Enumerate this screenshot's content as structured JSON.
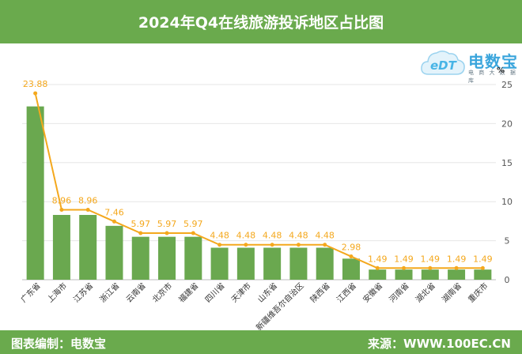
{
  "title": "2024年Q4在线旅游投诉地区占比图",
  "footer": {
    "left": "图表编制：电数宝",
    "right": "来源：WWW.100EC.CN"
  },
  "logo": {
    "mark": "eDT",
    "name": "电数宝",
    "tagline": "电 商 大 数 据 库",
    "icon": "cloud-logo-icon"
  },
  "colors": {
    "bar": "#6aa84f",
    "line": "#f4a81d",
    "header": "#6aaa4d",
    "label": "#f4a81d"
  },
  "chart_data": {
    "type": "bar",
    "unit": "%",
    "ylim": [
      0,
      25
    ],
    "yticks": [
      0,
      5,
      10,
      15,
      20,
      25
    ],
    "grid": true,
    "categories": [
      "广东省",
      "上海市",
      "江苏省",
      "浙江省",
      "云南省",
      "北京市",
      "福建省",
      "四川省",
      "天津市",
      "山东省",
      "新疆维吾尔自治区",
      "陕西省",
      "江西省",
      "安徽省",
      "河南省",
      "湖北省",
      "湖南省",
      "重庆市"
    ],
    "bar_values": [
      22.2,
      8.3,
      8.3,
      6.9,
      5.5,
      5.5,
      5.5,
      4.1,
      4.1,
      4.1,
      4.1,
      4.1,
      2.7,
      1.3,
      1.3,
      1.3,
      1.3,
      1.3
    ],
    "line_values": [
      23.88,
      8.96,
      8.96,
      7.46,
      5.97,
      5.97,
      5.97,
      4.48,
      4.48,
      4.48,
      4.48,
      4.48,
      2.98,
      1.49,
      1.49,
      1.49,
      1.49,
      1.49
    ],
    "labels": [
      "23.88",
      "8.96",
      "8.96",
      "7.46",
      "5.97",
      "5.97",
      "5.97",
      "4.48",
      "4.48",
      "4.48",
      "4.48",
      "4.48",
      "2.98",
      "1.49",
      "1.49",
      "1.49",
      "1.49",
      "1.49"
    ]
  }
}
